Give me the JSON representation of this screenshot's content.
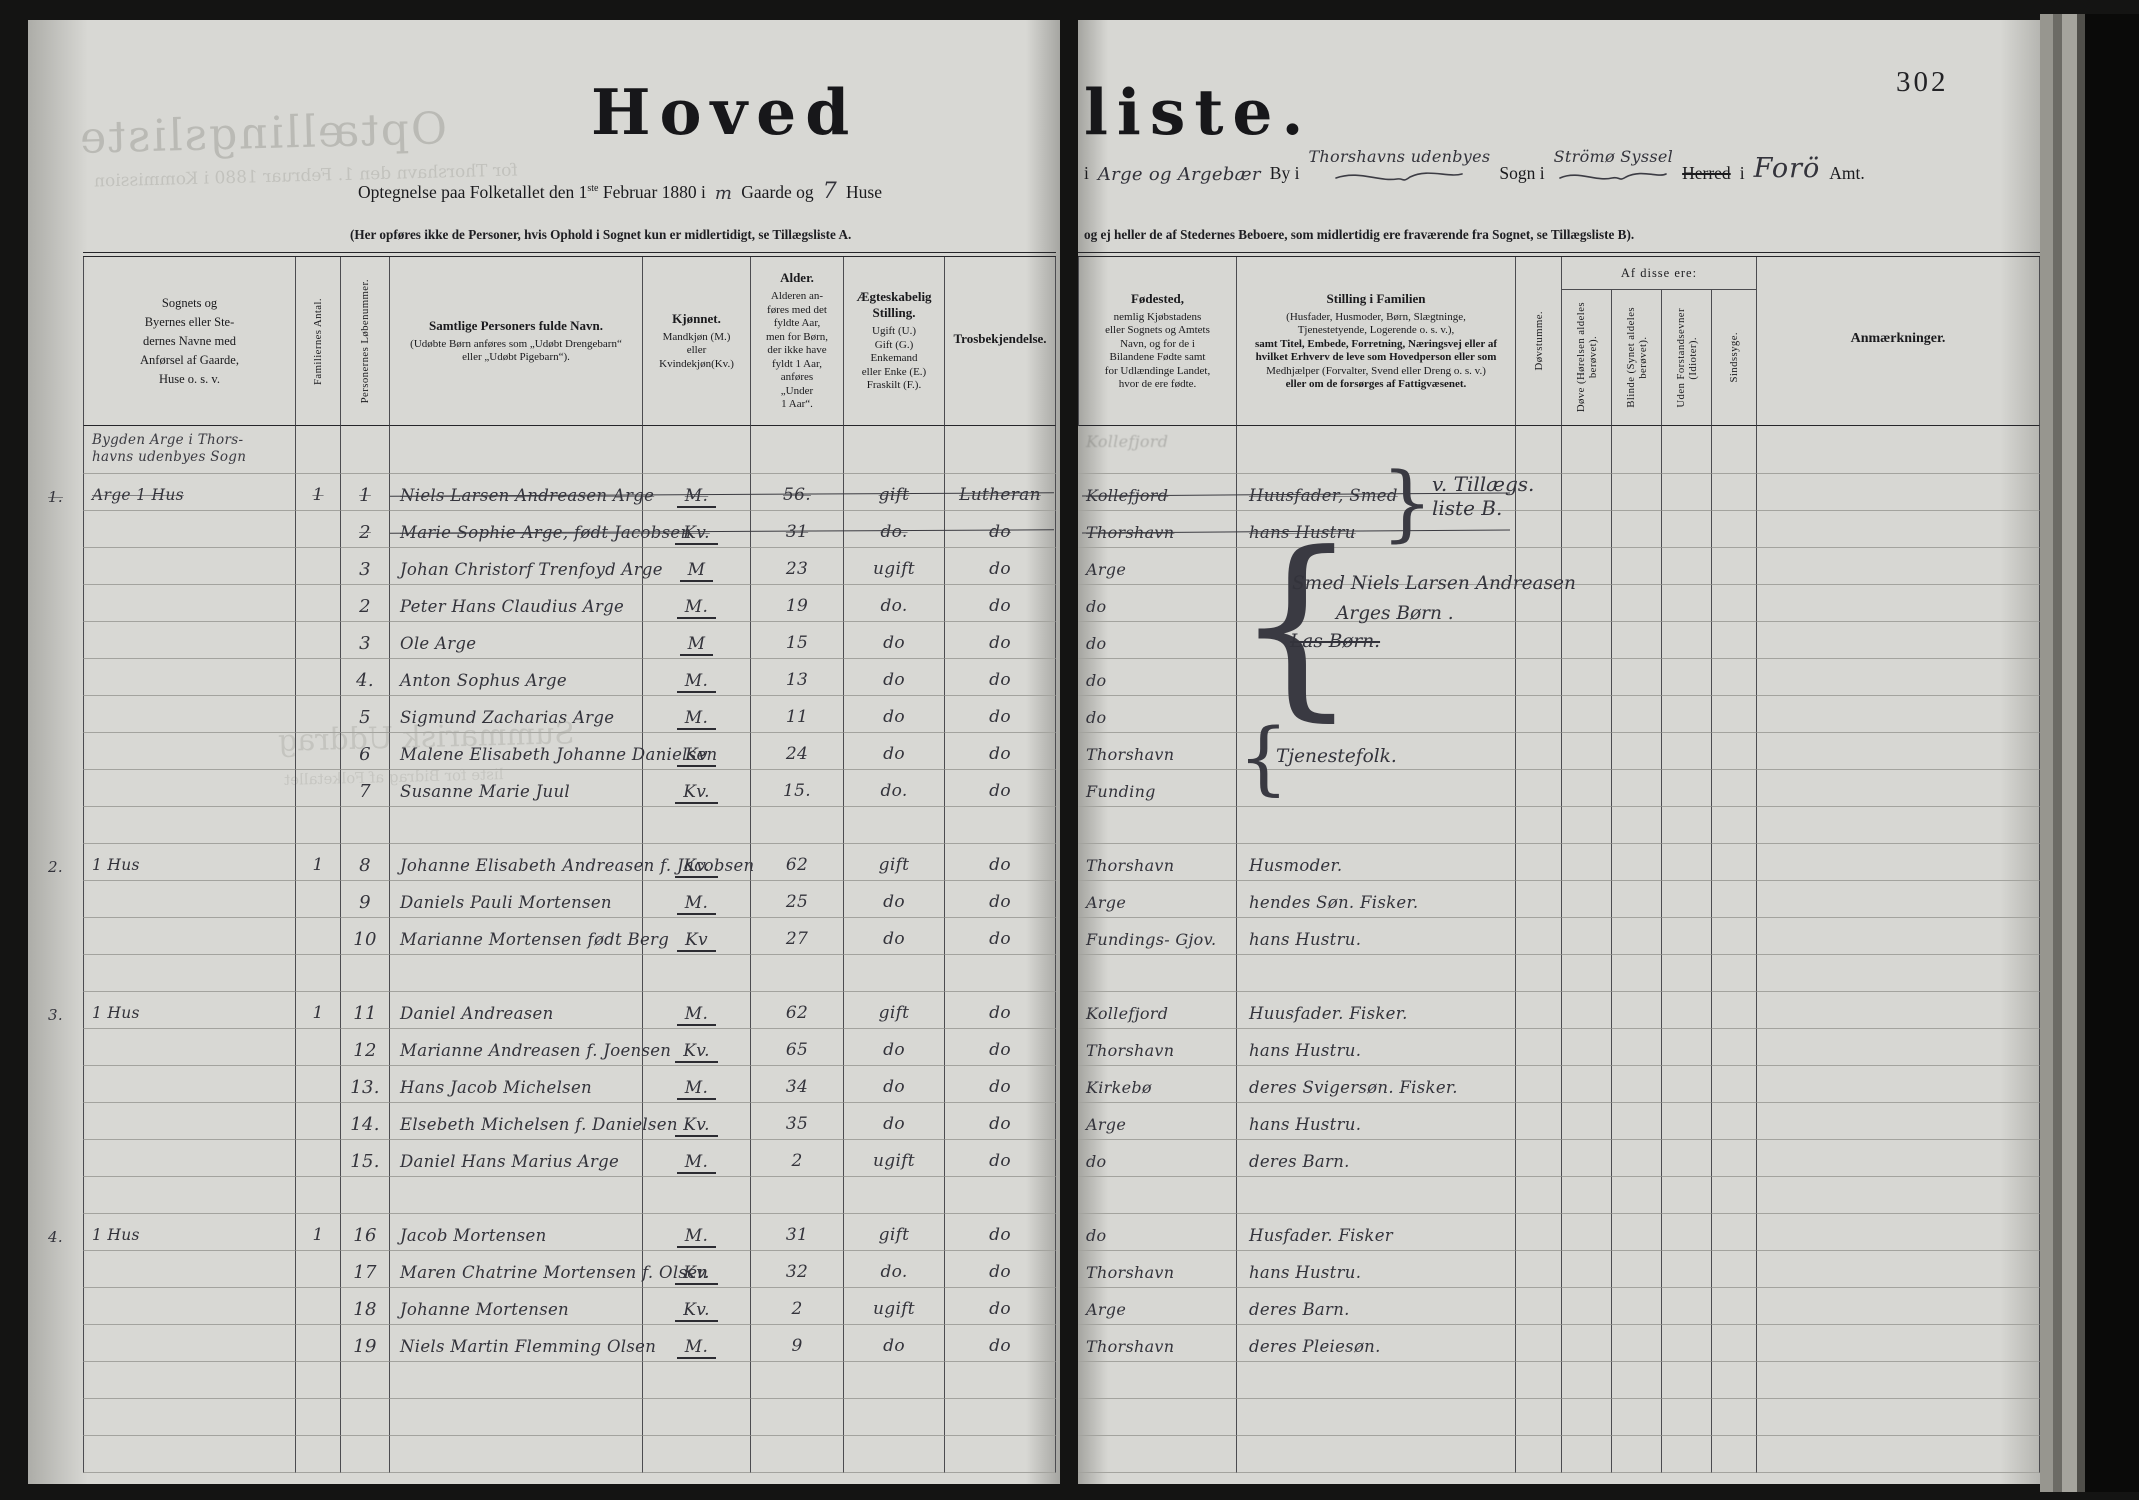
{
  "page_number": "302",
  "title": {
    "left_part": "Hoved",
    "right_part": "liste."
  },
  "subtitle": {
    "left_pre": "Optegnelse paa Folketallet den 1",
    "sup": "ste",
    "left_mid": "Februar 1880 i",
    "gaarde_hw": "m",
    "gaarde_label": "Gaarde og",
    "huse_hw": "7",
    "huse_label": "Huse",
    "i1": "i",
    "by_hw": "Arge og Argebær",
    "by_label": "By i",
    "sogn_hw": "Thorshavns udenbyes",
    "sogn_label": "Sogn i",
    "syssel_hw": "Strömø Syssel",
    "herred_label": "Herred",
    "i2": "i",
    "amt_hw": "Forö",
    "amt_label": "Amt."
  },
  "footnote_left": "(Her opføres ikke de Personer, hvis Ophold i Sognet kun er midlertidigt, se Tillægsliste A.",
  "footnote_right": "og ej heller de af Stedernes Beboere, som midlertidig ere fraværende fra Sognet, se Tillægsliste B).",
  "headers": {
    "left": {
      "place": "Sognets og\nByernes eller Ste-\ndernes Navne med\nAnførsel af Gaarde,\nHuse o. s. v.",
      "family": "Familiernes Antal.",
      "number": "Personernes Løbenummer.",
      "name_title": "Samtlige Personers fulde Navn.",
      "name_sub": "(Udøbte Børn anføres som „Udøbt Drengebarn“\neller „Udøbt Pigebarn“).",
      "sex_title": "Kjønnet.",
      "sex_sub": "Mandkjøn (M.)\neller\nKvindekjøn(Kv.)",
      "age_title": "Alder.",
      "age_sub": "Alderen an-\nføres med det\nfyldte Aar,\nmen for Børn,\nder ikke have\nfyldt 1 Aar,\nanføres\n„Under\n1 Aar“.",
      "marital_title": "Ægteskabelig\nStilling.",
      "marital_sub": "Ugift (U.)\nGift (G.)\nEnkemand\neller Enke (E.)\nFraskilt (F.).",
      "religion": "Trosbekjendelse."
    },
    "right": {
      "birth_title": "Fødested,",
      "birth_sub": "nemlig Kjøbstadens\neller Sognets og Amtets\nNavn, og for de i\nBilandene Fødte samt\nfor Udlændinge Landet,\nhvor de ere fødte.",
      "position_title": "Stilling i Familien",
      "position_sub_a": "(Husfader, Husmoder, Børn, Slægtninge,\nTjenestetyende, Logerende o. s. v.),",
      "position_sub_b": "samt Titel, Embede, Forretning, Næringsvej eller af\nhvilket Erhverv de leve som Hovedperson eller som",
      "position_sub_c": "Medhjælper (Forvalter, Svend eller Dreng o. s. v.)",
      "position_sub_d": "eller om de forsørges af Fattigvæsenet.",
      "deaf_mute": "Døvstumme.",
      "of_these": "Af disse ere:",
      "deaf": "Døve (Hørelsen aldeles\nberøvet).",
      "blind": "Blinde (Synet aldeles\nberøvet).",
      "idiots": "Uden Forstandsevner\n(Idioter).",
      "insane": "Sindssyge.",
      "remarks": "Anmærkninger."
    }
  },
  "body_rows": [
    {
      "tall": true,
      "place": "Bygden Arge i Thors-\nhavns udenbyes Sogn",
      "birth_ghost": "Kollefjord"
    },
    {
      "margin": "1.",
      "place": "Arge 1 Hus",
      "fam": "1",
      "nr": "1",
      "name": "Niels Larsen Andreasen Arge",
      "sex": "M.",
      "age": "56.",
      "status": "gift",
      "tros": "Lutheran",
      "birth": "Kollefjord",
      "stilling": "Huusfader, Smed",
      "struck": true
    },
    {
      "nr": "2",
      "name": "Marie Sophie Arge, født Jacobsen",
      "sex": "Kv.",
      "age": "31",
      "status": "do.",
      "tros": "do",
      "birth": "Thorshavn",
      "stilling": "hans Hustru",
      "struck": true
    },
    {
      "nr": "3",
      "name": "Johan Christorf Trenfoyd Arge",
      "sex": "M",
      "age": "23",
      "status": "ugift",
      "tros": "do",
      "birth": "Arge"
    },
    {
      "nr": "2",
      "name": "Peter Hans Claudius Arge",
      "sex": "M.",
      "age": "19",
      "status": "do.",
      "tros": "do",
      "birth": "do"
    },
    {
      "nr": "3",
      "name": "Ole Arge",
      "sex": "M",
      "age": "15",
      "status": "do",
      "tros": "do",
      "birth": "do"
    },
    {
      "nr": "4.",
      "name": "Anton Sophus Arge",
      "sex": "M.",
      "age": "13",
      "status": "do",
      "tros": "do",
      "birth": "do"
    },
    {
      "nr": "5",
      "name": "Sigmund Zacharias Arge",
      "sex": "M.",
      "age": "11",
      "status": "do",
      "tros": "do",
      "birth": "do"
    },
    {
      "nr": "6",
      "name": "Malene Elisabeth Johanne Danielsen",
      "sex": "Kv",
      "age": "24",
      "status": "do",
      "tros": "do",
      "birth": "Thorshavn"
    },
    {
      "nr": "7",
      "name": "Susanne Marie Juul",
      "sex": "Kv.",
      "age": "15.",
      "status": "do.",
      "tros": "do",
      "birth": "Funding"
    },
    {},
    {
      "margin": "2.",
      "place": "1 Hus",
      "fam": "1",
      "nr": "8",
      "name": "Johanne Elisabeth Andreasen f. Jacobsen",
      "sex": "Kv.",
      "age": "62",
      "status": "gift",
      "tros": "do",
      "birth": "Thorshavn",
      "stilling": "Husmoder."
    },
    {
      "nr": "9",
      "name": "Daniels Pauli Mortensen",
      "sex": "M.",
      "age": "25",
      "status": "do",
      "tros": "do",
      "birth": "Arge",
      "stilling": "hendes Søn. Fisker."
    },
    {
      "nr": "10",
      "name": "Marianne Mortensen født Berg",
      "sex": "Kv",
      "age": "27",
      "status": "do",
      "tros": "do",
      "birth": "Fundings- Gjov.",
      "stilling": "hans Hustru."
    },
    {},
    {
      "margin": "3.",
      "place": "1 Hus",
      "fam": "1",
      "nr": "11",
      "name": "Daniel Andreasen",
      "sex": "M.",
      "age": "62",
      "status": "gift",
      "tros": "do",
      "birth": "Kollefjord",
      "stilling": "Huusfader. Fisker."
    },
    {
      "nr": "12",
      "name": "Marianne Andreasen f. Joensen",
      "sex": "Kv.",
      "age": "65",
      "status": "do",
      "tros": "do",
      "birth": "Thorshavn",
      "stilling": "hans Hustru."
    },
    {
      "nr": "13.",
      "name": "Hans Jacob Michelsen",
      "sex": "M.",
      "age": "34",
      "status": "do",
      "tros": "do",
      "birth": "Kirkebø",
      "stilling": "deres Svigersøn. Fisker."
    },
    {
      "nr": "14.",
      "name": "Elsebeth Michelsen f. Danielsen",
      "sex": "Kv.",
      "age": "35",
      "status": "do",
      "tros": "do",
      "birth": "Arge",
      "stilling": "hans Hustru."
    },
    {
      "nr": "15.",
      "name": "Daniel Hans Marius Arge",
      "sex": "M.",
      "age": "2",
      "status": "ugift",
      "tros": "do",
      "birth": "do",
      "stilling": "deres Barn."
    },
    {},
    {
      "margin": "4.",
      "place": "1 Hus",
      "fam": "1",
      "nr": "16",
      "name": "Jacob Mortensen",
      "sex": "M.",
      "age": "31",
      "status": "gift",
      "tros": "do",
      "birth": "do",
      "stilling": "Husfader. Fisker"
    },
    {
      "nr": "17",
      "name": "Maren Chatrine Mortensen f. Olsen",
      "sex": "Kv.",
      "age": "32",
      "status": "do.",
      "tros": "do",
      "birth": "Thorshavn",
      "stilling": "hans Hustru."
    },
    {
      "nr": "18",
      "name": "Johanne Mortensen",
      "sex": "Kv.",
      "age": "2",
      "status": "ugift",
      "tros": "do",
      "birth": "Arge",
      "stilling": "deres Barn."
    },
    {
      "nr": "19",
      "name": "Niels Martin Flemming Olsen",
      "sex": "M.",
      "age": "9",
      "status": "do",
      "tros": "do",
      "birth": "Thorshavn",
      "stilling": "deres Pleiesøn."
    },
    {},
    {},
    {}
  ],
  "annotations": {
    "tillaeg_line1": "v. Tillægs.",
    "tillaeg_line2": "liste B.",
    "brace_close": "}",
    "brace_open": "{",
    "children_line1": "Smed Niels Larsen Andreasen",
    "children_line2": "Arges Børn .",
    "children_struck": "Las Børn.",
    "servants": "Tjenestefolk."
  },
  "bleedthrough": {
    "line1": "Optællingsliste",
    "line2": "for Thorshavn den 1. Februar 1880 i Kommission",
    "line3": "Summarisk Uddrag",
    "line4": "liste for Bidrag af Folketallet"
  }
}
